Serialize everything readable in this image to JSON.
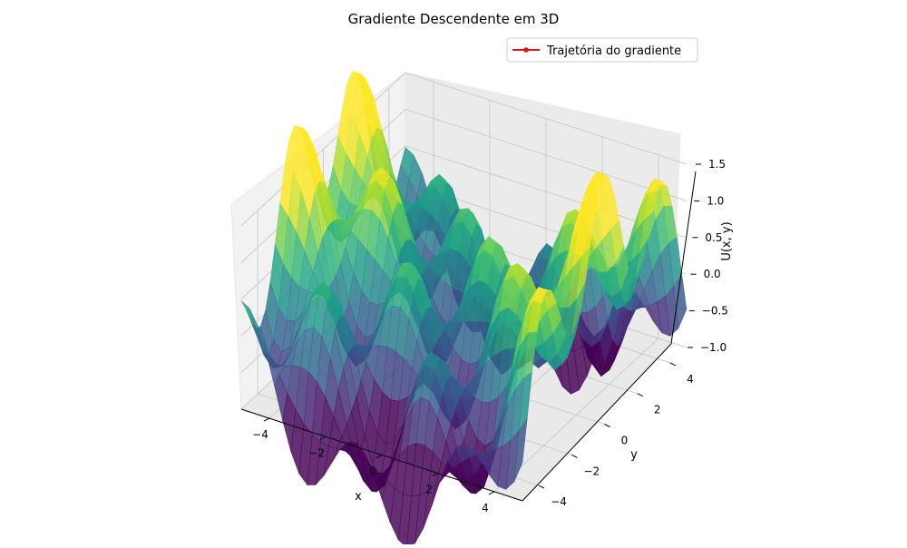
{
  "chart_data": {
    "type": "surface3d",
    "title": "Gradiente Descendente em 3D",
    "xlabel": "x",
    "ylabel": "y",
    "zlabel": "U(x, y)",
    "xlim": [
      -5,
      5
    ],
    "ylim": [
      -5,
      5
    ],
    "zlim": [
      -1.0,
      1.5
    ],
    "xticks": [
      -4,
      -2,
      0,
      2,
      4
    ],
    "yticks": [
      -4,
      -2,
      0,
      2,
      4
    ],
    "zticks": [
      -1.0,
      -0.5,
      0.0,
      0.5,
      1.0,
      1.5
    ],
    "xtick_labels": [
      "−4",
      "−2",
      "0",
      "2",
      "4"
    ],
    "ytick_labels": [
      "−4",
      "−2",
      "0",
      "2",
      "4"
    ],
    "ztick_labels": [
      "−1.0",
      "−0.5",
      "0.0",
      "0.5",
      "1.0",
      "1.5"
    ],
    "colormap": "viridis",
    "grid": true,
    "legend": {
      "placement": "top-right",
      "entries": [
        {
          "label": "Trajetória do gradiente",
          "color": "#e6151b",
          "marker": "dot"
        }
      ]
    }
  }
}
